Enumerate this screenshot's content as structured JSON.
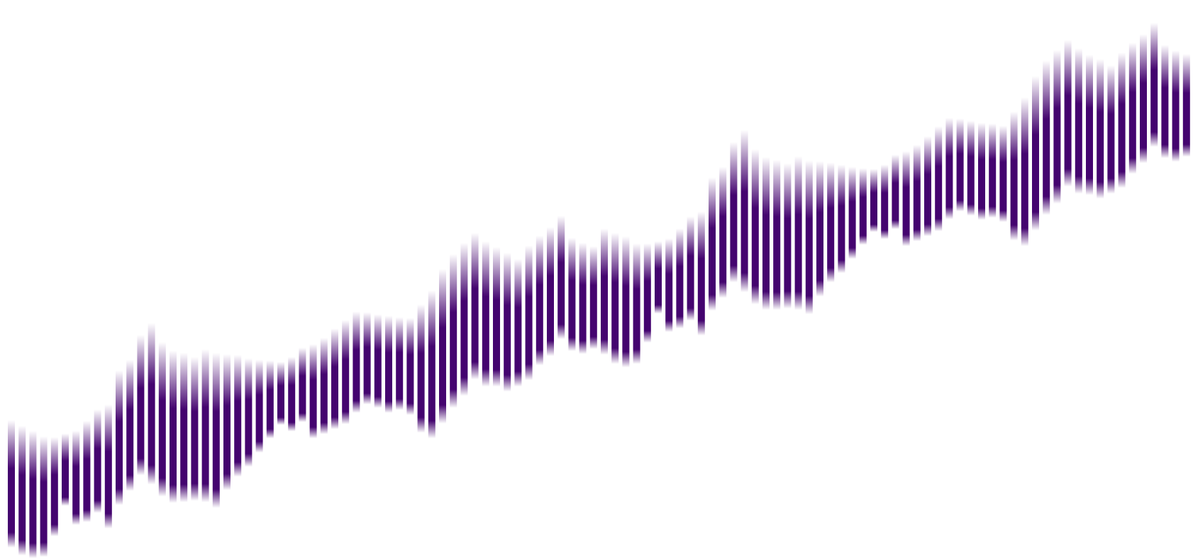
{
  "chart_data": {
    "type": "bar",
    "subtype": "floating-range-bars",
    "title": "",
    "xlabel": "",
    "ylabel": "",
    "axes_visible": false,
    "grid": false,
    "legend": "none",
    "ylim": [
      0,
      788
    ],
    "colors": {
      "bar": "#44046f",
      "background": "#ffffff"
    },
    "low": [
      16,
      5,
      1,
      3,
      32,
      75,
      48,
      52,
      65,
      43,
      76,
      96,
      118,
      105,
      88,
      79,
      80,
      82,
      80,
      72,
      97,
      116,
      130,
      150,
      170,
      189,
      180,
      193,
      170,
      176,
      183,
      190,
      206,
      218,
      213,
      206,
      210,
      203,
      178,
      170,
      191,
      213,
      230,
      253,
      243,
      243,
      236,
      243,
      252,
      273,
      286,
      310,
      293,
      289,
      296,
      288,
      275,
      270,
      275,
      305,
      346,
      320,
      325,
      336,
      315,
      350,
      368,
      390,
      376,
      359,
      351,
      351,
      353,
      351,
      345,
      370,
      390,
      403,
      423,
      443,
      461,
      451,
      465,
      441,
      448,
      455,
      462,
      479,
      490,
      484,
      478,
      481,
      475,
      449,
      441,
      463,
      485,
      501,
      525,
      515,
      513,
      508,
      515,
      523,
      543,
      558,
      581,
      565,
      560,
      567
    ],
    "high": [
      196,
      188,
      181,
      173,
      172,
      177,
      181,
      195,
      211,
      218,
      266,
      281,
      316,
      333,
      306,
      294,
      291,
      285,
      296,
      291,
      289,
      288,
      283,
      281,
      280,
      278,
      285,
      298,
      303,
      312,
      325,
      337,
      349,
      348,
      345,
      343,
      341,
      340,
      359,
      379,
      409,
      430,
      446,
      460,
      448,
      440,
      432,
      423,
      442,
      456,
      468,
      484,
      453,
      446,
      441,
      466,
      460,
      455,
      445,
      445,
      448,
      452,
      466,
      483,
      490,
      538,
      553,
      588,
      605,
      578,
      567,
      563,
      558,
      568,
      562,
      561,
      559,
      556,
      553,
      551,
      550,
      556,
      570,
      575,
      584,
      596,
      610,
      622,
      621,
      618,
      615,
      614,
      611,
      631,
      651,
      681,
      703,
      718,
      732,
      720,
      711,
      705,
      696,
      714,
      728,
      740,
      756,
      725,
      717,
      712
    ]
  }
}
